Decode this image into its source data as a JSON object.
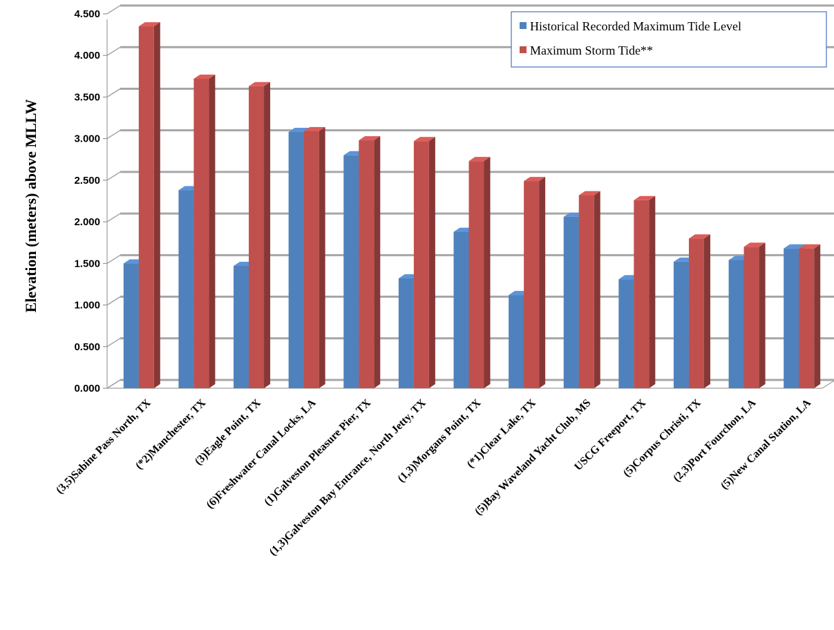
{
  "chart_data": {
    "type": "bar",
    "title": "",
    "xlabel": "",
    "ylabel": "Elevation (meters) above MLLW",
    "ylim": [
      0,
      4.5
    ],
    "yticks": [
      "0.000",
      "0.500",
      "1.000",
      "1.500",
      "2.000",
      "2.500",
      "3.000",
      "3.500",
      "4.000",
      "4.500"
    ],
    "grid": true,
    "legend_position": "top-right",
    "categories": [
      "(3,5)Sabine Pass North, TX",
      "(*2)Manchester, TX",
      "(3)Eagle Point, TX",
      "(6)Freshwater Canal Locks, LA",
      "(1)Galveston Pleasure Pier, TX",
      "(1,3)Galveston Bay Entrance, North Jetty, TX",
      "(1,3)Morgans Point, TX",
      "(*1)Clear Lake, TX",
      "(5)Bay Waveland Yacht Club, MS",
      "USCG Freeport, TX",
      "(5)Corpus Christi, TX",
      "(2,3)Port Fourchon, LA",
      "(5)New Canal Station, LA"
    ],
    "series": [
      {
        "name": "Historical Recorded Maximum Tide Level",
        "color": "#4F81BD",
        "values": [
          1.5,
          2.38,
          1.47,
          3.08,
          2.8,
          1.32,
          1.88,
          1.12,
          2.06,
          1.31,
          1.52,
          1.54,
          1.68
        ]
      },
      {
        "name": "Maximum Storm Tide**",
        "color": "#C0504D",
        "values": [
          4.35,
          3.72,
          3.63,
          3.09,
          2.98,
          2.97,
          2.73,
          2.49,
          2.32,
          2.26,
          1.8,
          1.7,
          1.68
        ]
      }
    ]
  }
}
